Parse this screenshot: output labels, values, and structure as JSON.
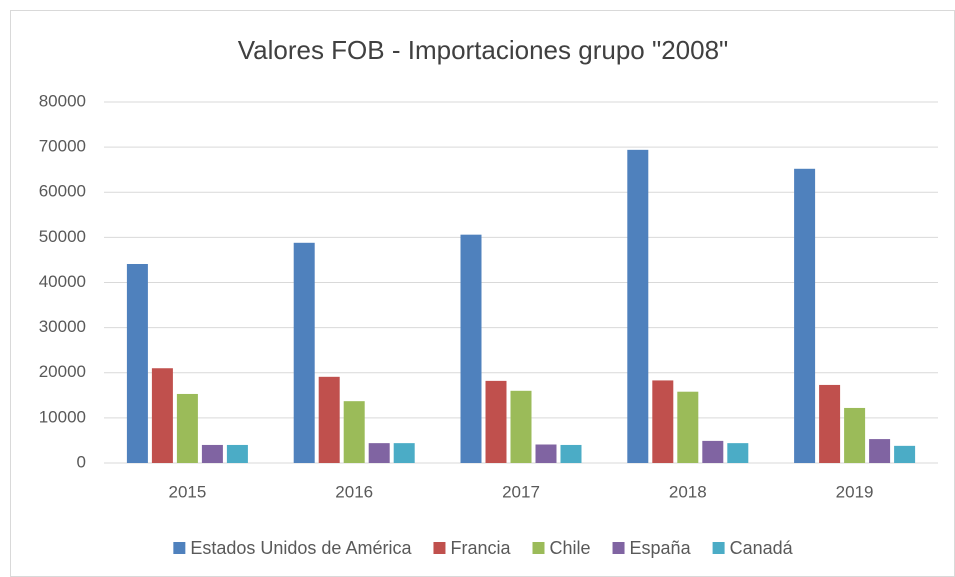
{
  "chart_data": {
    "type": "bar",
    "title": "Valores FOB - Importaciones grupo \"2008\"",
    "categories": [
      "2015",
      "2016",
      "2017",
      "2018",
      "2019"
    ],
    "series": [
      {
        "name": "Estados Unidos de América",
        "color": "#4f81bd",
        "values": [
          44100,
          48800,
          50600,
          69400,
          65200
        ]
      },
      {
        "name": "Francia",
        "color": "#c0504d",
        "values": [
          21000,
          19100,
          18200,
          18300,
          17300
        ]
      },
      {
        "name": "Chile",
        "color": "#9bbb59",
        "values": [
          15300,
          13700,
          16000,
          15800,
          12200
        ]
      },
      {
        "name": "España",
        "color": "#8064a2",
        "values": [
          4000,
          4400,
          4100,
          4900,
          5300
        ]
      },
      {
        "name": "Canadá",
        "color": "#4bacc6",
        "values": [
          4000,
          4400,
          4000,
          4400,
          3800
        ]
      }
    ],
    "ylim": [
      0,
      80000
    ],
    "yticks": [
      0,
      10000,
      20000,
      30000,
      40000,
      50000,
      60000,
      70000,
      80000
    ],
    "grid": true,
    "legend": "bottom"
  }
}
